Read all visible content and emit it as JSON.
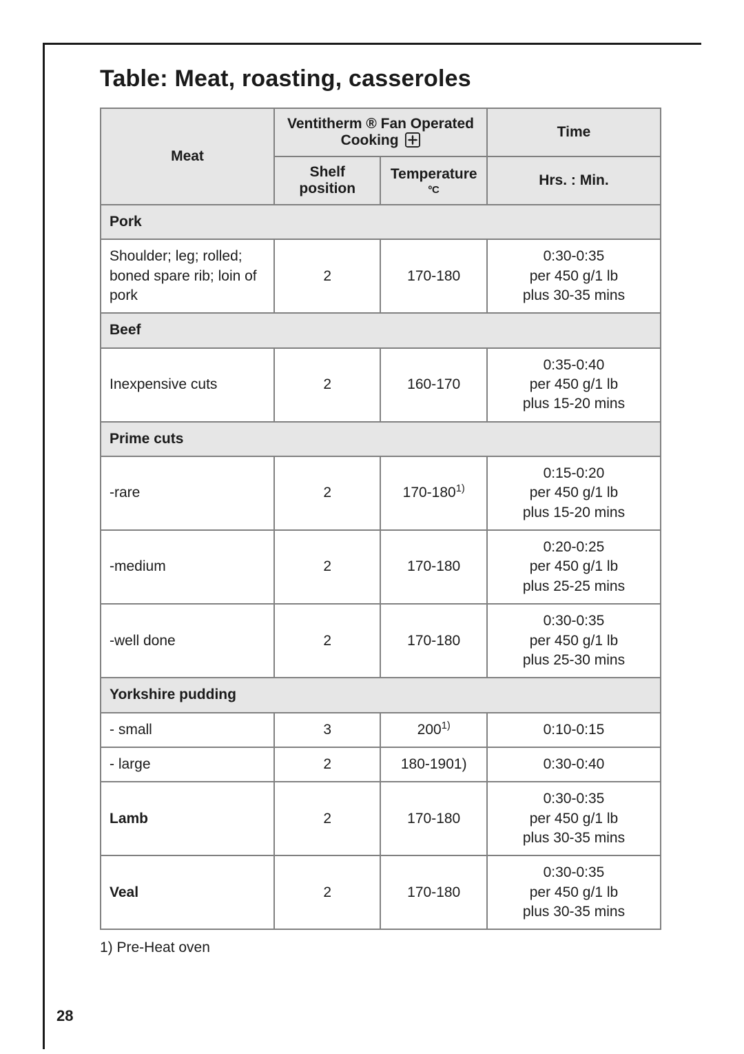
{
  "page": {
    "title": "Table: Meat, roasting, casseroles",
    "page_number": "28",
    "footnote": "1) Pre-Heat oven"
  },
  "colors": {
    "border": "#808080",
    "header_bg": "#e6e6e6",
    "text": "#1a1a1a",
    "page_bg": "#ffffff"
  },
  "typography": {
    "title_size_pt": 26,
    "body_size_pt": 16,
    "family": "Helvetica"
  },
  "table": {
    "columns": [
      "Meat",
      "Shelf position",
      "Temperature ºC",
      "Hrs. : Min."
    ],
    "header": {
      "meat": "Meat",
      "ventitherm_line": "Ventitherm ® Fan Operated",
      "cooking_label": "Cooking",
      "time": "Time",
      "shelf": "Shelf position",
      "temp_main": "Temperature",
      "temp_sub": "ºC",
      "hrs": "Hrs. : Min."
    },
    "rows": [
      {
        "type": "section",
        "label": "Pork"
      },
      {
        "type": "data",
        "meat": "Shoulder; leg; rolled; boned spare rib; loin of pork",
        "shelf": "2",
        "temp": "170-180",
        "time": "0:30-0:35\nper 450 g/1 lb\nplus 30-35 mins"
      },
      {
        "type": "section",
        "label": "Beef"
      },
      {
        "type": "data",
        "meat": "Inexpensive cuts",
        "shelf": "2",
        "temp": "160-170",
        "time": "0:35-0:40\nper 450 g/1 lb\nplus 15-20 mins"
      },
      {
        "type": "section",
        "label": "Prime cuts"
      },
      {
        "type": "data",
        "meat": "-rare",
        "shelf": "2",
        "temp": "170-180",
        "temp_sup": "1)",
        "time": "0:15-0:20\nper 450 g/1 lb\nplus 15-20 mins"
      },
      {
        "type": "data",
        "meat": "-medium",
        "shelf": "2",
        "temp": "170-180",
        "time": "0:20-0:25\nper 450 g/1 lb\nplus 25-25 mins"
      },
      {
        "type": "data",
        "meat": "-well done",
        "shelf": "2",
        "temp": "170-180",
        "time": "0:30-0:35\nper 450 g/1 lb\nplus 25-30 mins"
      },
      {
        "type": "section",
        "label": "Yorkshire pudding"
      },
      {
        "type": "data",
        "meat": "- small",
        "shelf": "3",
        "temp": "200",
        "temp_sup": "1)",
        "time": "0:10-0:15"
      },
      {
        "type": "data",
        "meat": "- large",
        "shelf": "2",
        "temp": "180-1901)",
        "time": "0:30-0:40"
      },
      {
        "type": "data",
        "meat_bold": true,
        "meat": "Lamb",
        "shelf": "2",
        "temp": "170-180",
        "time": "0:30-0:35\nper 450 g/1 lb\nplus 30-35 mins"
      },
      {
        "type": "data",
        "meat_bold": true,
        "meat": "Veal",
        "shelf": "2",
        "temp": "170-180",
        "time": "0:30-0:35\nper 450 g/1 lb\nplus 30-35 mins"
      }
    ]
  }
}
